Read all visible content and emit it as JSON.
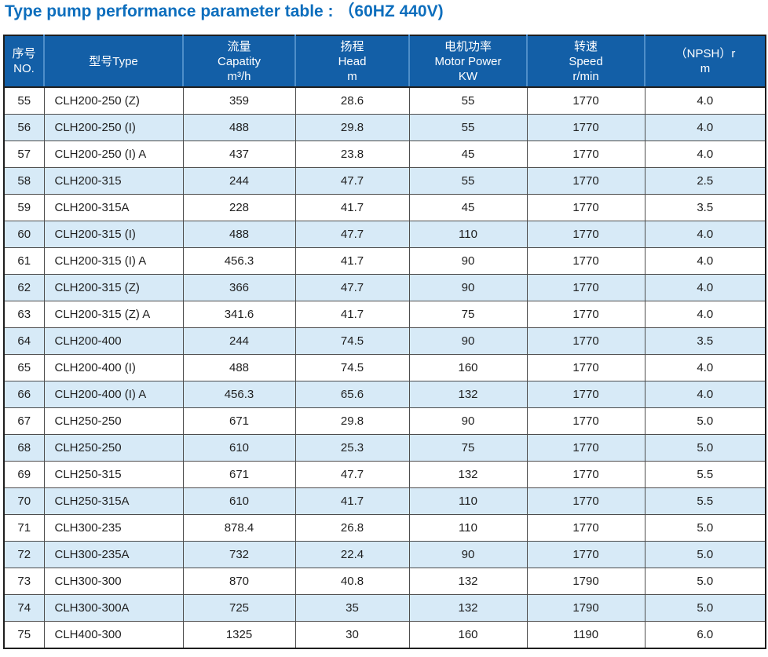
{
  "page": {
    "title": "Type pump performance parameter table : （60HZ  440V)"
  },
  "colors": {
    "title_blue": "#0d6ebd",
    "header_bg": "#135fa7",
    "header_divider": "#4e8ec9",
    "header_text": "#ffffff",
    "alt_row_bg": "#d7eaf7",
    "grid_line": "#4d4d4d",
    "outer_border": "#1e1e1e",
    "body_text": "#1f1f1f"
  },
  "table": {
    "columns": [
      {
        "id": "no",
        "lines": [
          "序号",
          "NO."
        ]
      },
      {
        "id": "type",
        "lines": [
          "型号Type"
        ]
      },
      {
        "id": "capacity",
        "lines": [
          "流量",
          "Capatity",
          "m³/h"
        ]
      },
      {
        "id": "head",
        "lines": [
          "扬程",
          "Head",
          "m"
        ]
      },
      {
        "id": "motor-power",
        "lines": [
          "电机功率",
          "Motor Power",
          "KW"
        ]
      },
      {
        "id": "speed",
        "lines": [
          "转速",
          "Speed",
          "r/min"
        ]
      },
      {
        "id": "npsh",
        "lines": [
          "（NPSH）r",
          "m"
        ]
      }
    ],
    "rows": [
      [
        "55",
        "CLH200-250 (Z)",
        "359",
        "28.6",
        "55",
        "1770",
        "4.0"
      ],
      [
        "56",
        "CLH200-250 (I)",
        "488",
        "29.8",
        "55",
        "1770",
        "4.0"
      ],
      [
        "57",
        "CLH200-250 (I) A",
        "437",
        "23.8",
        "45",
        "1770",
        "4.0"
      ],
      [
        "58",
        "CLH200-315",
        "244",
        "47.7",
        "55",
        "1770",
        "2.5"
      ],
      [
        "59",
        "CLH200-315A",
        "228",
        "41.7",
        "45",
        "1770",
        "3.5"
      ],
      [
        "60",
        "CLH200-315 (I)",
        "488",
        "47.7",
        "110",
        "1770",
        "4.0"
      ],
      [
        "61",
        "CLH200-315 (I) A",
        "456.3",
        "41.7",
        "90",
        "1770",
        "4.0"
      ],
      [
        "62",
        "CLH200-315 (Z)",
        "366",
        "47.7",
        "90",
        "1770",
        "4.0"
      ],
      [
        "63",
        "CLH200-315 (Z) A",
        "341.6",
        "41.7",
        "75",
        "1770",
        "4.0"
      ],
      [
        "64",
        "CLH200-400",
        "244",
        "74.5",
        "90",
        "1770",
        "3.5"
      ],
      [
        "65",
        "CLH200-400 (I)",
        "488",
        "74.5",
        "160",
        "1770",
        "4.0"
      ],
      [
        "66",
        "CLH200-400 (I) A",
        "456.3",
        "65.6",
        "132",
        "1770",
        "4.0"
      ],
      [
        "67",
        "CLH250-250",
        "671",
        "29.8",
        "90",
        "1770",
        "5.0"
      ],
      [
        "68",
        "CLH250-250",
        "610",
        "25.3",
        "75",
        "1770",
        "5.0"
      ],
      [
        "69",
        "CLH250-315",
        "671",
        "47.7",
        "132",
        "1770",
        "5.5"
      ],
      [
        "70",
        "CLH250-315A",
        "610",
        "41.7",
        "110",
        "1770",
        "5.5"
      ],
      [
        "71",
        "CLH300-235",
        "878.4",
        "26.8",
        "110",
        "1770",
        "5.0"
      ],
      [
        "72",
        "CLH300-235A",
        "732",
        "22.4",
        "90",
        "1770",
        "5.0"
      ],
      [
        "73",
        "CLH300-300",
        "870",
        "40.8",
        "132",
        "1790",
        "5.0"
      ],
      [
        "74",
        "CLH300-300A",
        "725",
        "35",
        "132",
        "1790",
        "5.0"
      ],
      [
        "75",
        "CLH400-300",
        "1325",
        "30",
        "160",
        "1190",
        "6.0"
      ]
    ]
  }
}
